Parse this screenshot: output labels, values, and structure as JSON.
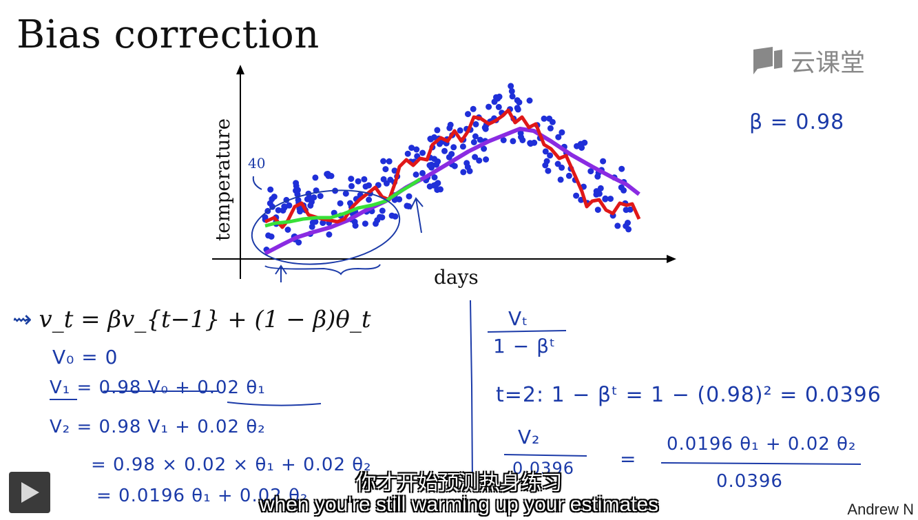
{
  "slide": {
    "title": "Bias correction",
    "logo_text": "云课堂",
    "watermark": "Andrew N",
    "equation_main": "v_t = βv_{t−1} + (1 − β)θ_t"
  },
  "chart": {
    "xlabel": "days",
    "ylabel": "temperature",
    "annotation_40": "40"
  },
  "handwriting": {
    "beta_note": "β = 0.98",
    "v0": "V₀ = 0",
    "v1": "V₁ = 0.98 V₀ + 0.02 θ₁",
    "v2": "V₂ = 0.98 V₁ + 0.02 θ₂",
    "v2_expand1": "= 0.98 × 0.02 × θ₁ + 0.02 θ₂",
    "v2_expand2": "= 0.0196 θ₁ + 0.02 θ₂",
    "frac_num": "Vₜ",
    "frac_den": "1 − βᵗ",
    "t2_line": "t=2:   1 − βᵗ  =  1 − (0.98)²  =  0.0396",
    "frac2_num": "V₂",
    "frac2_den": "0.0396",
    "rhs_num": "0.0196 θ₁ + 0.02 θ₂",
    "rhs_den": "0.0396"
  },
  "subtitles": {
    "zh": "你才开始预测热身练习",
    "en": "when you're still warming up your estimates"
  },
  "colors": {
    "scatter": "#1f2fd8",
    "red_line": "#e01818",
    "green_line": "#38e038",
    "purple_line": "#8a2be2",
    "ink": "#1b3aa8"
  },
  "player": {
    "play_icon": "play-icon"
  }
}
